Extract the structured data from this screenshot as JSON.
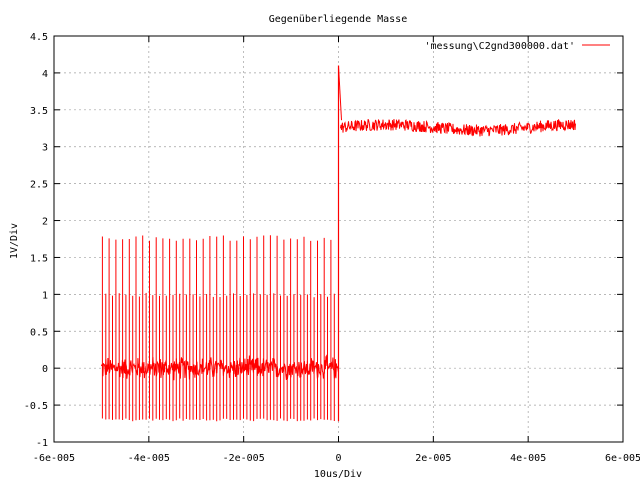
{
  "chart_data": {
    "type": "line",
    "title": "Gegenüberliegende Masse",
    "xlabel": "10us/Div",
    "ylabel": "1V/Div",
    "xlim": [
      -6e-05,
      6e-05
    ],
    "ylim": [
      -1,
      4.5
    ],
    "x_ticks": [
      {
        "value": -6e-05,
        "label": "-6e-005"
      },
      {
        "value": -4e-05,
        "label": "-4e-005"
      },
      {
        "value": -2e-05,
        "label": "-2e-005"
      },
      {
        "value": 0,
        "label": "0"
      },
      {
        "value": 2e-05,
        "label": "2e-005"
      },
      {
        "value": 4e-05,
        "label": "4e-005"
      },
      {
        "value": 6e-05,
        "label": "6e-005"
      }
    ],
    "y_ticks": [
      {
        "value": -1,
        "label": "-1"
      },
      {
        "value": -0.5,
        "label": "-0.5"
      },
      {
        "value": 0,
        "label": "0"
      },
      {
        "value": 0.5,
        "label": "0.5"
      },
      {
        "value": 1,
        "label": "1"
      },
      {
        "value": 1.5,
        "label": "1.5"
      },
      {
        "value": 2,
        "label": "2"
      },
      {
        "value": 2.5,
        "label": "2.5"
      },
      {
        "value": 3,
        "label": "3"
      },
      {
        "value": 3.5,
        "label": "3.5"
      },
      {
        "value": 4,
        "label": "4"
      },
      {
        "value": 4.5,
        "label": "4.5"
      }
    ],
    "grid": true,
    "legend_position": "top-right",
    "series": [
      {
        "name": "'messung\\C2gnd300000.dat'",
        "color": "#ff0000",
        "segments": [
          {
            "x_start": -5e-05,
            "x_end": 0,
            "baseline": 0,
            "noise": 0.12,
            "spike_high": 1.8,
            "spike_mid": 1.02,
            "spike_low": -0.72
          },
          {
            "x_start": 0,
            "x_end": 5e-05,
            "baseline": 3.26,
            "noise": 0.08
          }
        ],
        "transition": {
          "x": 0,
          "peak": 4.1
        }
      }
    ]
  }
}
